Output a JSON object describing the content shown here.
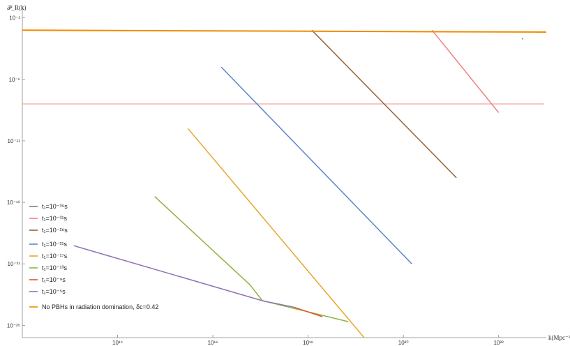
{
  "chart_data": {
    "type": "line",
    "title": "",
    "xlabel": "k(Mpc⁻¹)",
    "ylabel": "𝒫_R(k)",
    "x_scale": "log",
    "y_scale": "log",
    "xlim": [
      1000000000000.0,
      1e+23
    ],
    "ylim": [
      1e-27,
      1.0
    ],
    "x_ticks": [
      {
        "value": 100000000000000.0,
        "label": "10¹⁴"
      },
      {
        "value": 1e+16,
        "label": "10¹⁶"
      },
      {
        "value": 1e+18,
        "label": "10¹⁸"
      },
      {
        "value": 1e+20,
        "label": "10²⁰"
      },
      {
        "value": 1e+22,
        "label": "10²²"
      }
    ],
    "y_ticks": [
      {
        "value": 0.1,
        "label": "10⁻¹"
      },
      {
        "value": 1e-06,
        "label": "10⁻⁶"
      },
      {
        "value": 1e-11,
        "label": "10⁻¹¹"
      },
      {
        "value": 1e-16,
        "label": "10⁻¹⁶"
      },
      {
        "value": 1e-21,
        "label": "10⁻²¹"
      },
      {
        "value": 1e-26,
        "label": "10⁻²⁶"
      }
    ],
    "reference_lines": [
      {
        "axis": "y",
        "value": 1e-08,
        "color": "#f4a3a3"
      }
    ],
    "legend_position": "bottom-left",
    "series": [
      {
        "name": "t₁=10⁻³⁵s",
        "color": "#7f7f7f",
        "points": []
      },
      {
        "name": "t₁=10⁻³¹s",
        "color": "#f08080",
        "points": [
          [
            4e+20,
            0.01
          ],
          [
            1e+22,
            2e-09
          ]
        ]
      },
      {
        "name": "t₁=10⁻²⁶s",
        "color": "#9a6232",
        "points": [
          [
            1.2e+18,
            0.01
          ],
          [
            1.3e+21,
            1e-14
          ]
        ]
      },
      {
        "name": "t₁=10⁻²¹s",
        "color": "#5b87c8",
        "points": [
          [
            1.5e+16,
            1e-05
          ],
          [
            1.5e+20,
            1e-21
          ]
        ]
      },
      {
        "name": "t₁=10⁻¹⁷s",
        "color": "#e5a72a",
        "points": [
          [
            3000000000000000.0,
            1e-10
          ],
          [
            1.5e+19,
            1e-27
          ]
        ]
      },
      {
        "name": "t₁=10⁻¹³s",
        "color": "#8fb240",
        "points": [
          [
            600000000000000.0,
            3e-16
          ],
          [
            6e+16,
            2e-23
          ],
          [
            1.1e+17,
            1e-24
          ],
          [
            7e+18,
            2e-26
          ]
        ]
      },
      {
        "name": "t₁=10⁻⁹s",
        "color": "#e4552d",
        "points": [
          [
            5e+17,
            3e-25
          ],
          [
            2e+18,
            5e-26
          ]
        ]
      },
      {
        "name": "t₁=10⁻⁵s",
        "color": "#8e72b2",
        "points": [
          [
            12000000000000.0,
            3e-20
          ],
          [
            1.1e+17,
            1e-24
          ],
          [
            5e+17,
            3e-25
          ]
        ]
      },
      {
        "name": "No PBHs in radiation domination, δᴄ=0.42",
        "color": "#f08c00",
        "points": [
          [
            1000000000000.0,
            0.01
          ],
          [
            1e+23,
            0.007
          ]
        ]
      }
    ]
  }
}
